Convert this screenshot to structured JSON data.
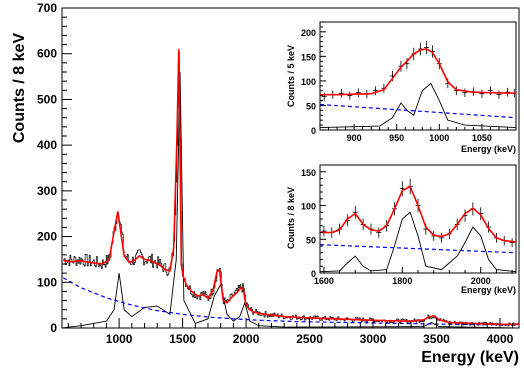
{
  "chart_data": [
    {
      "type": "line",
      "panel": "main",
      "xlabel": "Energy (keV)",
      "ylabel": "Counts / 8 keV",
      "xlim": [
        550,
        4150
      ],
      "ylim": [
        0,
        700
      ],
      "xticks": [
        1000,
        1500,
        2000,
        2500,
        3000,
        3500,
        4000
      ],
      "yticks": [
        0,
        100,
        200,
        300,
        400,
        500,
        600,
        700
      ],
      "grid": false,
      "series": [
        {
          "color": "#000000",
          "style": "histogram-data",
          "x": [
            560,
            620,
            700,
            780,
            860,
            920,
            960,
            990,
            1010,
            1040,
            1080,
            1120,
            1160,
            1200,
            1240,
            1280,
            1320,
            1360,
            1400,
            1430,
            1455,
            1470,
            1480,
            1490,
            1505,
            1530,
            1570,
            1620,
            1660,
            1700,
            1740,
            1770,
            1790,
            1805,
            1820,
            1850,
            1890,
            1930,
            1960,
            1980,
            1995,
            2020,
            2060,
            2150,
            2300,
            2500,
            2700,
            2900,
            3100,
            3300,
            3400,
            3440,
            3480,
            3520,
            3600,
            3800,
            4000,
            4150
          ],
          "values": [
            150,
            148,
            150,
            145,
            140,
            150,
            215,
            262,
            220,
            160,
            145,
            150,
            160,
            150,
            150,
            145,
            140,
            130,
            125,
            180,
            420,
            600,
            400,
            140,
            115,
            95,
            80,
            70,
            75,
            65,
            85,
            125,
            130,
            95,
            60,
            55,
            70,
            80,
            90,
            85,
            55,
            42,
            35,
            30,
            25,
            22,
            20,
            18,
            16,
            15,
            18,
            25,
            28,
            18,
            12,
            10,
            8,
            8
          ]
        },
        {
          "color": "#ff0000",
          "style": "total-fit",
          "x": [
            560,
            620,
            700,
            780,
            860,
            920,
            960,
            990,
            1010,
            1040,
            1080,
            1120,
            1160,
            1200,
            1240,
            1280,
            1320,
            1360,
            1400,
            1430,
            1455,
            1470,
            1480,
            1490,
            1505,
            1530,
            1570,
            1620,
            1660,
            1700,
            1740,
            1770,
            1790,
            1805,
            1820,
            1850,
            1890,
            1930,
            1960,
            1980,
            1995,
            2020,
            2060,
            2150,
            2300,
            2500,
            2700,
            2900,
            3100,
            3300,
            3400,
            3440,
            3480,
            3520,
            3600,
            3800,
            4000,
            4150
          ],
          "values": [
            148,
            145,
            147,
            143,
            140,
            148,
            210,
            255,
            215,
            158,
            143,
            148,
            158,
            150,
            148,
            143,
            138,
            128,
            125,
            175,
            410,
            610,
            395,
            138,
            113,
            94,
            80,
            70,
            73,
            65,
            83,
            122,
            128,
            93,
            60,
            55,
            68,
            78,
            88,
            83,
            55,
            42,
            35,
            30,
            25,
            22,
            20,
            18,
            16,
            15,
            18,
            24,
            27,
            18,
            12,
            10,
            8,
            8
          ]
        },
        {
          "color": "#0000ff",
          "style": "dashed-background",
          "x": [
            560,
            700,
            900,
            1100,
            1300,
            1500,
            1700,
            1900,
            2100,
            2400,
            2800,
            3200,
            3600,
            4000,
            4150
          ],
          "values": [
            110,
            88,
            66,
            50,
            38,
            30,
            24,
            20,
            17,
            14,
            12,
            10,
            8,
            7,
            6
          ]
        },
        {
          "color": "#000000",
          "style": "component",
          "x": [
            560,
            600,
            700,
            800,
            900,
            960,
            1000,
            1040,
            1100,
            1200,
            1300,
            1400,
            1450,
            1480,
            1510,
            1600,
            1700,
            1750,
            1800,
            1850,
            1900,
            1950,
            1990,
            2030,
            2100,
            2300,
            3400,
            3460,
            3520,
            4150
          ],
          "values": [
            0,
            2,
            5,
            10,
            15,
            40,
            120,
            40,
            25,
            45,
            48,
            30,
            150,
            560,
            60,
            10,
            20,
            70,
            95,
            30,
            15,
            25,
            55,
            15,
            5,
            2,
            3,
            12,
            3,
            0
          ]
        }
      ]
    },
    {
      "type": "line",
      "panel": "inset-top",
      "xlabel": "Energy (keV)",
      "ylabel": "Counts / 5 keV",
      "xlim": [
        860,
        1090
      ],
      "ylim": [
        0,
        220
      ],
      "xticks": [
        900,
        950,
        1000,
        1050
      ],
      "yticks": [
        0,
        50,
        100,
        150,
        200
      ],
      "series": [
        {
          "color": "#000000",
          "style": "data-points",
          "x": [
            865,
            875,
            885,
            895,
            905,
            915,
            925,
            935,
            945,
            955,
            962,
            970,
            978,
            985,
            992,
            1000,
            1010,
            1020,
            1030,
            1040,
            1050,
            1060,
            1070,
            1080,
            1088
          ],
          "values": [
            68,
            72,
            75,
            70,
            76,
            73,
            80,
            85,
            110,
            130,
            135,
            155,
            165,
            168,
            160,
            135,
            95,
            80,
            76,
            78,
            74,
            80,
            72,
            77,
            75
          ]
        },
        {
          "color": "#ff0000",
          "style": "total-fit",
          "x": [
            860,
            880,
            900,
            920,
            935,
            945,
            955,
            962,
            970,
            978,
            985,
            992,
            1000,
            1010,
            1020,
            1040,
            1060,
            1090
          ],
          "values": [
            72,
            72,
            73,
            74,
            82,
            105,
            128,
            140,
            155,
            163,
            165,
            158,
            135,
            98,
            82,
            77,
            76,
            75
          ]
        },
        {
          "color": "#0000ff",
          "style": "dashed-background",
          "x": [
            860,
            1090
          ],
          "values": [
            52,
            25
          ]
        },
        {
          "color": "#000000",
          "style": "component",
          "x": [
            860,
            930,
            945,
            955,
            962,
            970,
            980,
            990,
            1000,
            1010,
            1030,
            1090
          ],
          "values": [
            5,
            8,
            25,
            55,
            40,
            30,
            80,
            95,
            60,
            20,
            10,
            5
          ]
        }
      ]
    },
    {
      "type": "line",
      "panel": "inset-bottom",
      "xlabel": "Energy (keV)",
      "ylabel": "Counts / 8 keV",
      "xlim": [
        1590,
        2090
      ],
      "ylim": [
        0,
        160
      ],
      "xticks": [
        1600,
        1800,
        2000
      ],
      "yticks": [
        0,
        50,
        100,
        150
      ],
      "series": [
        {
          "color": "#000000",
          "style": "data-points",
          "x": [
            1600,
            1620,
            1640,
            1660,
            1680,
            1700,
            1720,
            1740,
            1760,
            1780,
            1800,
            1820,
            1840,
            1860,
            1880,
            1900,
            1920,
            1940,
            1960,
            1980,
            2000,
            2020,
            2040,
            2060,
            2080
          ],
          "values": [
            62,
            60,
            65,
            78,
            90,
            72,
            65,
            60,
            70,
            95,
            125,
            128,
            100,
            65,
            55,
            52,
            58,
            72,
            85,
            95,
            88,
            68,
            52,
            48,
            45
          ]
        },
        {
          "color": "#ff0000",
          "style": "total-fit",
          "x": [
            1590,
            1620,
            1640,
            1660,
            1680,
            1700,
            1720,
            1740,
            1760,
            1780,
            1800,
            1820,
            1840,
            1860,
            1880,
            1900,
            1920,
            1940,
            1960,
            1980,
            2000,
            2020,
            2040,
            2060,
            2090
          ],
          "values": [
            60,
            60,
            64,
            80,
            88,
            72,
            64,
            62,
            70,
            95,
            122,
            128,
            100,
            68,
            56,
            54,
            58,
            72,
            88,
            96,
            86,
            66,
            52,
            48,
            46
          ]
        },
        {
          "color": "#0000ff",
          "style": "dashed-background",
          "x": [
            1590,
            2090
          ],
          "values": [
            42,
            30
          ]
        },
        {
          "color": "#000000",
          "style": "component",
          "x": [
            1590,
            1640,
            1660,
            1680,
            1700,
            1720,
            1760,
            1780,
            1800,
            1820,
            1840,
            1860,
            1900,
            1920,
            1940,
            1960,
            1980,
            2000,
            2020,
            2040,
            2090
          ],
          "values": [
            2,
            3,
            15,
            25,
            10,
            3,
            5,
            40,
            80,
            90,
            55,
            10,
            5,
            15,
            25,
            45,
            68,
            55,
            20,
            5,
            2
          ]
        }
      ]
    }
  ]
}
